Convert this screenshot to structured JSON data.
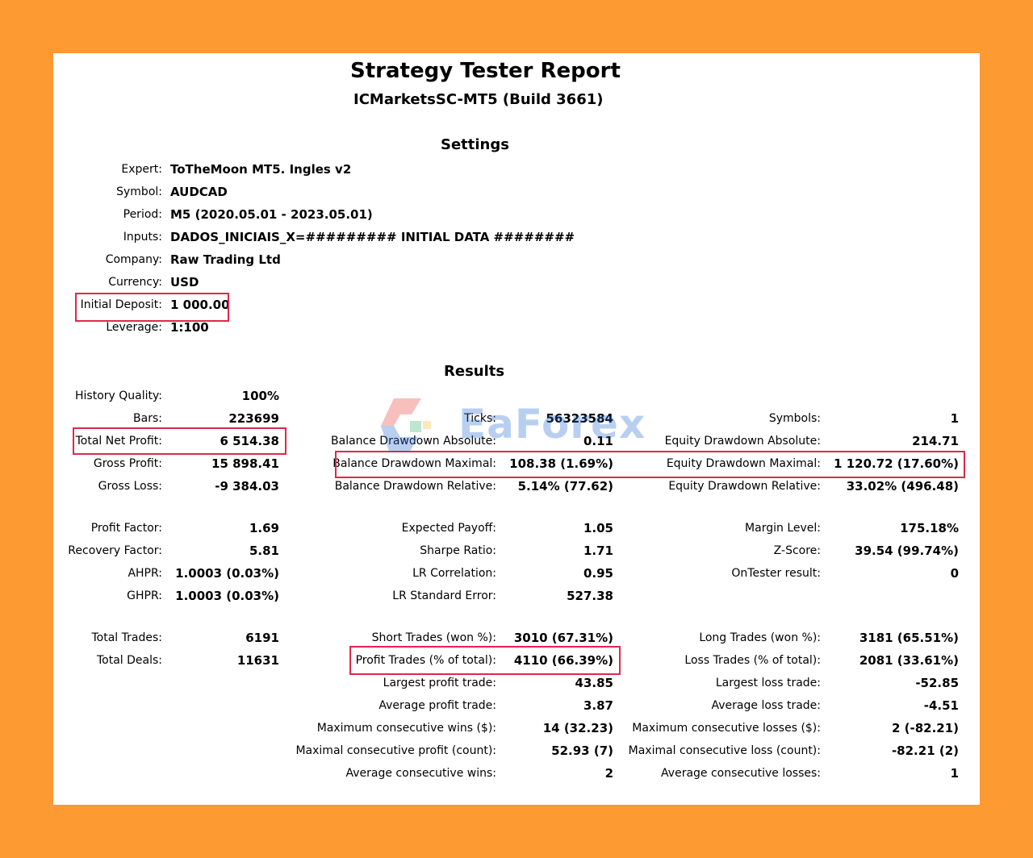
{
  "header": {
    "title": "Strategy Tester Report",
    "subtitle": "ICMarketsSC-MT5 (Build 3661)"
  },
  "settings": {
    "heading": "Settings",
    "rows": [
      {
        "label": "Expert:",
        "value": "ToTheMoon MT5. Ingles v2"
      },
      {
        "label": "Symbol:",
        "value": "AUDCAD"
      },
      {
        "label": "Period:",
        "value": "M5 (2020.05.01 - 2023.05.01)"
      },
      {
        "label": "Inputs:",
        "value": "DADOS_INICIAIS_X=######### INITIAL DATA ########"
      },
      {
        "label": "Company:",
        "value": "Raw Trading Ltd"
      },
      {
        "label": "Currency:",
        "value": "USD"
      },
      {
        "label": "Initial Deposit:",
        "value": "1 000.00"
      },
      {
        "label": "Leverage:",
        "value": "1:100"
      }
    ]
  },
  "results": {
    "heading": "Results",
    "col1": [
      {
        "label": "History Quality:",
        "value": "100%"
      },
      {
        "label": "Bars:",
        "value": "223699"
      },
      {
        "label": "Total Net Profit:",
        "value": "6 514.38"
      },
      {
        "label": "Gross Profit:",
        "value": "15 898.41"
      },
      {
        "label": "Gross Loss:",
        "value": "-9 384.03"
      },
      {
        "label": "Profit Factor:",
        "value": "1.69"
      },
      {
        "label": "Recovery Factor:",
        "value": "5.81"
      },
      {
        "label": "AHPR:",
        "value": "1.0003 (0.03%)"
      },
      {
        "label": "GHPR:",
        "value": "1.0003 (0.03%)"
      },
      {
        "label": "Total Trades:",
        "value": "6191"
      },
      {
        "label": "Total Deals:",
        "value": "11631"
      }
    ],
    "col2": [
      {
        "label": "Ticks:",
        "value": "56323584"
      },
      {
        "label": "Balance Drawdown Absolute:",
        "value": "0.11"
      },
      {
        "label": "Balance Drawdown Maximal:",
        "value": "108.38 (1.69%)"
      },
      {
        "label": "Balance Drawdown Relative:",
        "value": "5.14% (77.62)"
      },
      {
        "label": "Expected Payoff:",
        "value": "1.05"
      },
      {
        "label": "Sharpe Ratio:",
        "value": "1.71"
      },
      {
        "label": "LR Correlation:",
        "value": "0.95"
      },
      {
        "label": "LR Standard Error:",
        "value": "527.38"
      },
      {
        "label": "Short Trades (won %):",
        "value": "3010 (67.31%)"
      },
      {
        "label": "Profit Trades (% of total):",
        "value": "4110 (66.39%)"
      },
      {
        "label": "Largest profit trade:",
        "value": "43.85"
      },
      {
        "label": "Average profit trade:",
        "value": "3.87"
      },
      {
        "label": "Maximum consecutive wins ($):",
        "value": "14 (32.23)"
      },
      {
        "label": "Maximal consecutive profit (count):",
        "value": "52.93 (7)"
      },
      {
        "label": "Average consecutive wins:",
        "value": "2"
      }
    ],
    "col3": [
      {
        "label": "Symbols:",
        "value": "1"
      },
      {
        "label": "Equity Drawdown Absolute:",
        "value": "214.71"
      },
      {
        "label": "Equity Drawdown Maximal:",
        "value": "1 120.72 (17.60%)"
      },
      {
        "label": "Equity Drawdown Relative:",
        "value": "33.02% (496.48)"
      },
      {
        "label": "Margin Level:",
        "value": "175.18%"
      },
      {
        "label": "Z-Score:",
        "value": "39.54 (99.74%)"
      },
      {
        "label": "OnTester result:",
        "value": "0"
      },
      {
        "label": "Long Trades (won %):",
        "value": "3181 (65.51%)"
      },
      {
        "label": "Loss Trades (% of total):",
        "value": "2081 (33.61%)"
      },
      {
        "label": "Largest loss trade:",
        "value": "-52.85"
      },
      {
        "label": "Average loss trade:",
        "value": "-4.51"
      },
      {
        "label": "Maximum consecutive losses ($):",
        "value": "2 (-82.21)"
      },
      {
        "label": "Maximal consecutive loss (count):",
        "value": "-82.21 (2)"
      },
      {
        "label": "Average consecutive losses:",
        "value": "1"
      }
    ]
  },
  "watermark": {
    "text": "EaForex",
    "colors": {
      "blue": "#2a6fd6",
      "red": "#e8423a",
      "green": "#3cb371",
      "yellow": "#f2c230"
    }
  },
  "colors": {
    "frame": "#fd9a32",
    "highlight": "#e0274a"
  }
}
